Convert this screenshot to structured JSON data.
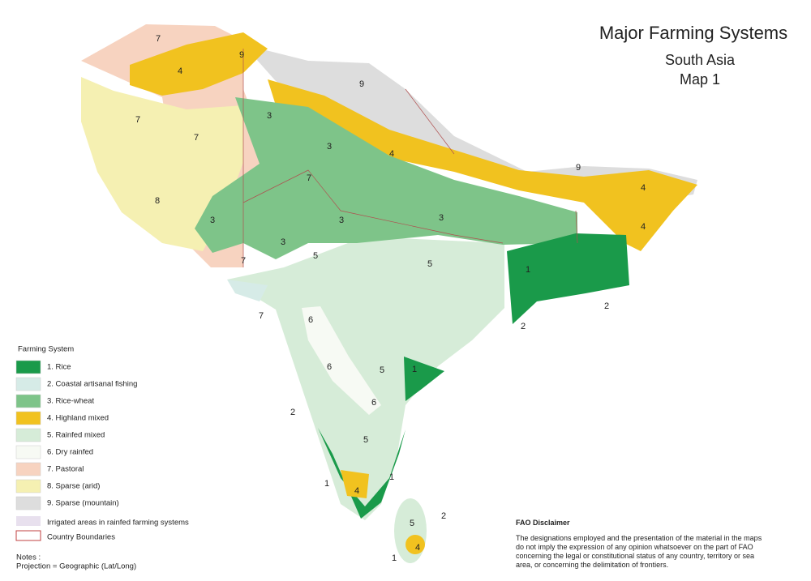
{
  "title": "Major Farming Systems",
  "subtitle": [
    "South Asia",
    "Map 1"
  ],
  "legend": {
    "title": "Farming System",
    "items": [
      {
        "label": "1. Rice",
        "color": "#1a9a4a"
      },
      {
        "label": "2. Coastal artisanal fishing",
        "color": "#d6ebe7"
      },
      {
        "label": "3. Rice-wheat",
        "color": "#7ec489"
      },
      {
        "label": "4. Highland mixed",
        "color": "#f1c21f"
      },
      {
        "label": "5. Rainfed mixed",
        "color": "#d6ecd8"
      },
      {
        "label": "6. Dry rainfed",
        "color": "#f7faf4"
      },
      {
        "label": "7. Pastoral",
        "color": "#f7d3c0"
      },
      {
        "label": "8. Sparse (arid)",
        "color": "#f5f0b2"
      },
      {
        "label": "9. Sparse (mountain)",
        "color": "#dddddd"
      }
    ],
    "irrigated": "Irrigated areas in rainfed farming systems",
    "boundaries": "Country Boundaries"
  },
  "notes": [
    "Notes :",
    "Projection = Geographic (Lat/Long)"
  ],
  "disclaimer": {
    "title": "FAO Disclaimer",
    "lines": [
      "The designations employed and the presentation of the material in the maps",
      "do not imply the expression of any opinion whatsoever on the part of FAO",
      "concerning the legal or constitutional status of any country, territory or sea",
      "area, or concerning the delimitation of frontiers."
    ]
  },
  "map_labels": [
    "7",
    "9",
    "4",
    "9",
    "3",
    "7",
    "7",
    "3",
    "4",
    "9",
    "7",
    "4",
    "8",
    "3",
    "3",
    "3",
    "4",
    "3",
    "5",
    "5",
    "7",
    "1",
    "2",
    "7",
    "2",
    "6",
    "6",
    "5",
    "1",
    "6",
    "2",
    "5",
    "1",
    "4",
    "1",
    "5",
    "2",
    "4",
    "1"
  ]
}
